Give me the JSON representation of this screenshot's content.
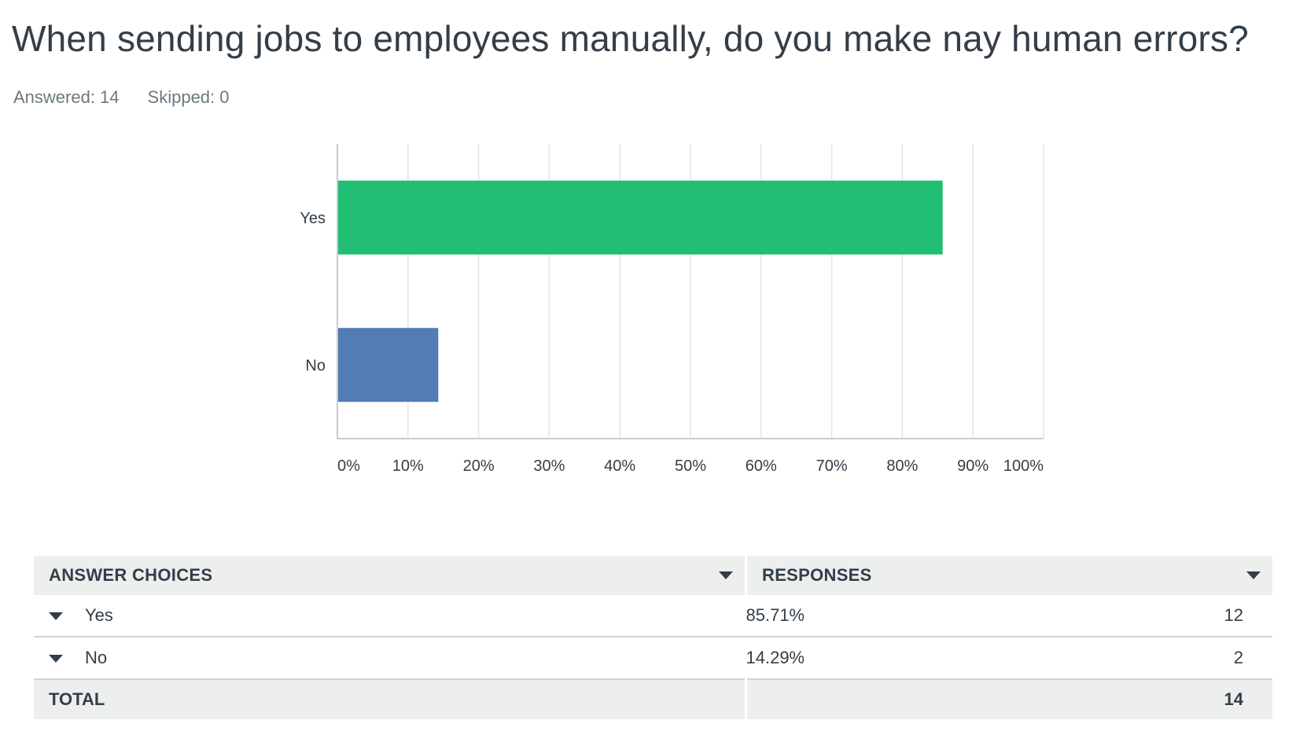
{
  "question": {
    "title": "When sending jobs to employees manually, do you make nay human errors?",
    "answered": "Answered: 14",
    "skipped": "Skipped: 0"
  },
  "colors": {
    "yes": "#21be73",
    "no": "#517cb4",
    "grid": "#e2e4e5",
    "axis": "#c9cccf"
  },
  "chart_data": {
    "type": "bar",
    "orientation": "horizontal",
    "categories": [
      "Yes",
      "No"
    ],
    "values": [
      85.71,
      14.29
    ],
    "xlim": [
      0,
      100
    ],
    "ticks": [
      "0%",
      "10%",
      "20%",
      "30%",
      "40%",
      "50%",
      "60%",
      "70%",
      "80%",
      "90%",
      "100%"
    ],
    "grid": true
  },
  "table": {
    "headers": {
      "choices": "ANSWER CHOICES",
      "responses": "RESPONSES"
    },
    "rows": [
      {
        "choice": "Yes",
        "percent": "85.71%",
        "count": "12"
      },
      {
        "choice": "No",
        "percent": "14.29%",
        "count": "2"
      }
    ],
    "total": {
      "label": "TOTAL",
      "count": "14"
    }
  }
}
